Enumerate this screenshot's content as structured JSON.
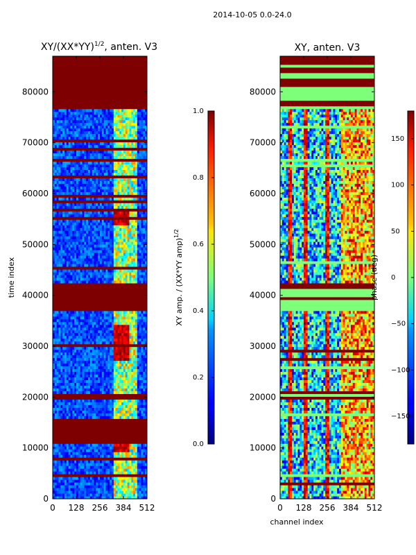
{
  "suptitle": "2014-10-05 0.0-24.0",
  "chart_data": [
    {
      "type": "heatmap",
      "title": "XY/(XX*YY)^{1/2}, anten. V3",
      "title_main": "XY/(XX*YY)",
      "title_exp": "1/2",
      "title_tail": ", anten. V3",
      "xlabel": "",
      "ylabel": "time index",
      "x_ticks": [
        0,
        128,
        256,
        384,
        512
      ],
      "y_ticks": [
        0,
        10000,
        20000,
        30000,
        40000,
        50000,
        60000,
        70000,
        80000
      ],
      "xlim": [
        0,
        512
      ],
      "ylim": [
        0,
        87000
      ],
      "colorbar": {
        "label": "XY amp. / (XX*YY amp)^{1/2}",
        "label_main": "XY amp. / (XX*YY amp)",
        "label_exp": "1/2",
        "range": [
          0.0,
          1.0
        ],
        "ticks": [
          "0.0",
          "0.2",
          "0.4",
          "0.6",
          "0.8",
          "1.0"
        ],
        "tick_values": [
          0.0,
          0.2,
          0.4,
          0.6,
          0.8,
          1.0
        ]
      },
      "flagged_row_ranges": [
        [
          37000,
          42500
        ],
        [
          76800,
          87000
        ],
        [
          19500,
          20800
        ],
        [
          11000,
          16000
        ]
      ]
    },
    {
      "type": "heatmap",
      "title": "XY, anten. V3",
      "xlabel": "channel index",
      "ylabel": "",
      "x_ticks": [
        0,
        128,
        256,
        384,
        512
      ],
      "y_ticks": [
        0,
        10000,
        20000,
        30000,
        40000,
        50000,
        60000,
        70000,
        80000
      ],
      "xlim": [
        0,
        512
      ],
      "ylim": [
        0,
        87000
      ],
      "colorbar": {
        "label": "phase (deg)",
        "range": [
          -180,
          180
        ],
        "ticks": [
          "−150",
          "−100",
          "−50",
          "0",
          "50",
          "100",
          "150"
        ],
        "tick_values": [
          -150,
          -100,
          -50,
          0,
          50,
          100,
          150
        ]
      },
      "flagged_row_ranges": [
        [
          37000,
          42500
        ],
        [
          76800,
          87000
        ],
        [
          19500,
          20800
        ]
      ]
    }
  ]
}
